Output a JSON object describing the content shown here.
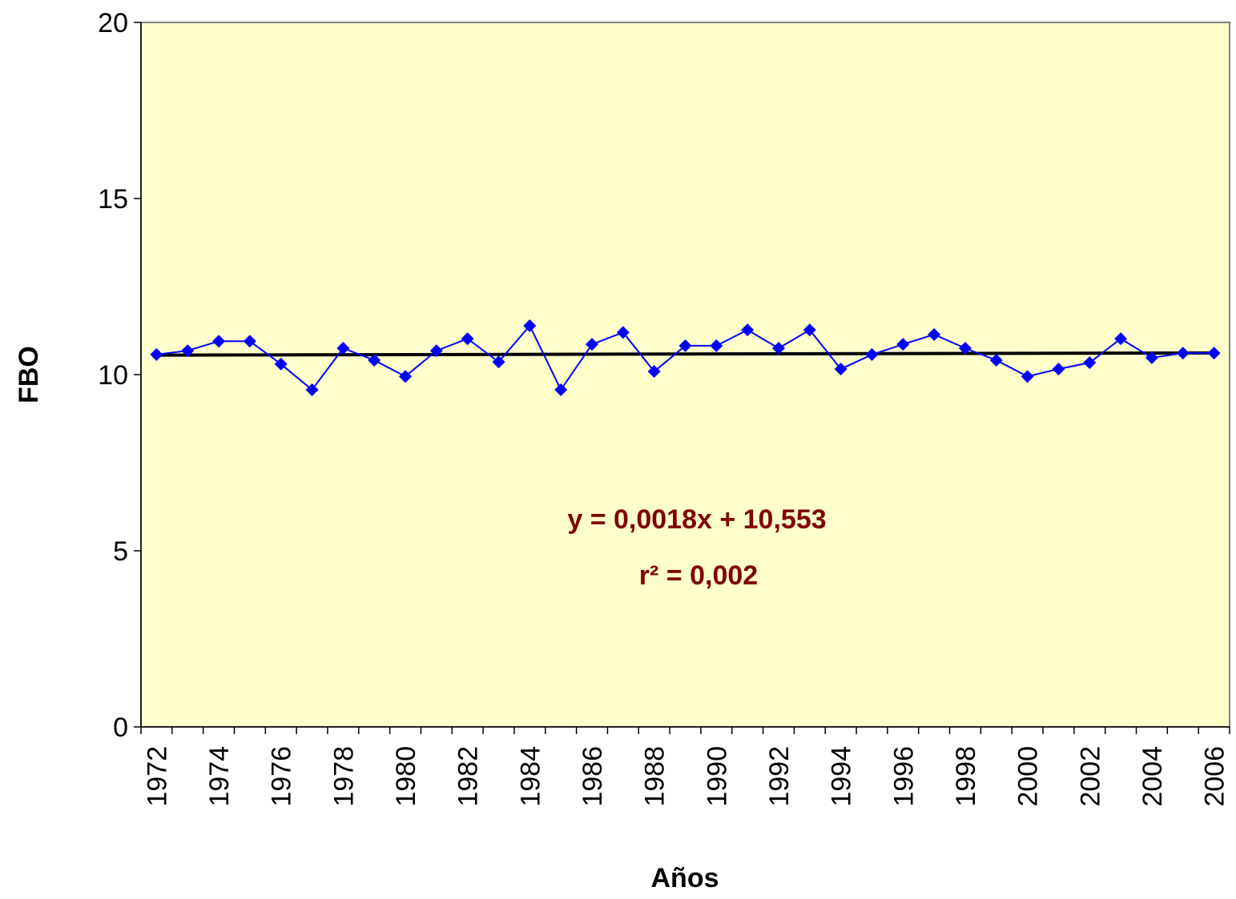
{
  "chart_data": {
    "type": "line",
    "x_label": "Años",
    "y_label": "FBO",
    "categories": [
      "1972",
      null,
      "1974",
      null,
      "1976",
      null,
      "1978",
      null,
      "1980",
      null,
      "1982",
      null,
      "1984",
      null,
      "1986",
      null,
      "1988",
      null,
      "1990",
      null,
      "1992",
      null,
      "1994",
      null,
      "1996",
      null,
      "1998",
      null,
      "2000",
      null,
      "2002",
      null,
      "2004",
      null,
      "2006"
    ],
    "series": [
      {
        "color": "#0000ff",
        "values": [
          10.57,
          10.68,
          10.95,
          10.95,
          10.3,
          9.57,
          10.75,
          10.41,
          9.95,
          10.68,
          11.02,
          10.36,
          11.39,
          9.57,
          10.86,
          11.2,
          10.09,
          10.82,
          10.82,
          11.27,
          10.75,
          11.27,
          10.16,
          10.57,
          10.86,
          11.14,
          10.75,
          10.41,
          9.95,
          10.16,
          10.34,
          11.02,
          10.48,
          10.61,
          10.61
        ]
      }
    ],
    "trendline": {
      "slope": 0.0018,
      "intercept": 10.553,
      "color": "#000000",
      "equation": "y = 0,0018x + 10,553",
      "r2_label": "r² = 0,002",
      "label_color": "#800000"
    },
    "ylim": [
      0,
      20
    ],
    "yticks": [
      0,
      5,
      10,
      15,
      20
    ],
    "grid": false,
    "plot_background": "#ffffcc"
  }
}
